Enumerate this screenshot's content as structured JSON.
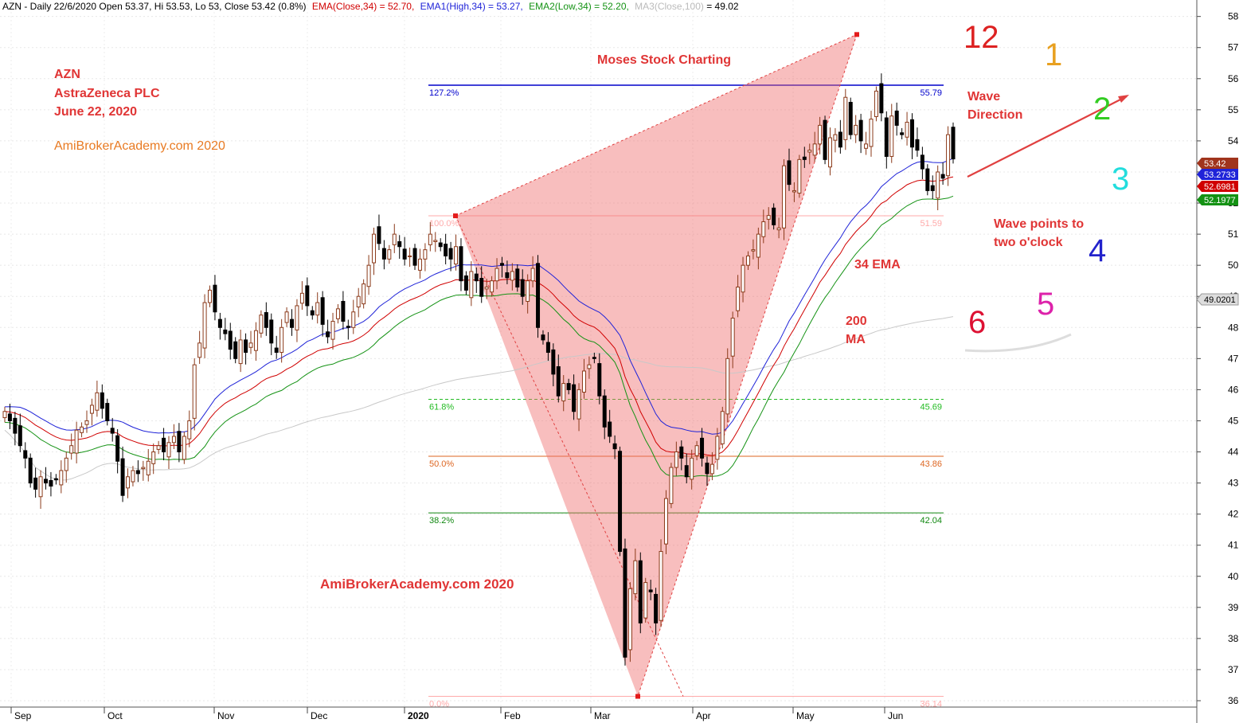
{
  "header": {
    "symbol_info": "AZN - Daily 22/6/2020 Open 53.37, Hi 53.53, Lo 53, Close 53.42 (0.8%)",
    "ema_close_label": "EMA(Close,34) = 52.70,",
    "ema1_high_label": "EMA1(High,34) = 53.27,",
    "ema2_low_label": "EMA2(Low,34) = 52.20,",
    "ma3_label": "MA3(Close,100)",
    "ma3_value": " = 49.02"
  },
  "annotations": {
    "ticker": "AZN",
    "company": "AstraZeneca PLC",
    "date": "June 22, 2020",
    "watermark_top": "AmiBrokerAcademy.com 2020",
    "watermark_bottom": "AmiBrokerAcademy.com 2020",
    "moses": "Moses Stock Charting",
    "wave_direction_1": "Wave",
    "wave_direction_2": "Direction",
    "wave_points_1": "Wave points to",
    "wave_points_2": "two o'clock",
    "ema34": "34 EMA",
    "ma200_1": "200",
    "ma200_2": "MA"
  },
  "clock_numbers": [
    {
      "text": "12",
      "color": "#dd2222"
    },
    {
      "text": "1",
      "color": "#e8a020"
    },
    {
      "text": "2",
      "color": "#33cc22"
    },
    {
      "text": "3",
      "color": "#22dddd"
    },
    {
      "text": "4",
      "color": "#2222cc"
    },
    {
      "text": "5",
      "color": "#dd22aa"
    },
    {
      "text": "6",
      "color": "#dd1133"
    }
  ],
  "fib_levels": [
    {
      "pct": "127.2%",
      "value": "55.79",
      "price": 55.79,
      "color": "#0000cc",
      "dash": false
    },
    {
      "pct": "100.0%",
      "value": "51.59",
      "price": 51.59,
      "color": "#ffaaaa",
      "dash": false
    },
    {
      "pct": "61.8%",
      "value": "45.69",
      "price": 45.69,
      "color": "#22bb22",
      "dash": true
    },
    {
      "pct": "50.0%",
      "value": "43.86",
      "price": 43.86,
      "color": "#dd6622",
      "dash": false
    },
    {
      "pct": "38.2%",
      "value": "42.04",
      "price": 42.04,
      "color": "#118811",
      "dash": false
    },
    {
      "pct": "0.0%",
      "value": "36.14",
      "price": 36.14,
      "color": "#ffaaaa",
      "dash": false
    }
  ],
  "price_tags": [
    {
      "text": "53.42",
      "price": 53.42,
      "color": "#a0341c"
    },
    {
      "text": "53.2733",
      "price": 53.27,
      "color": "#1f23d8"
    },
    {
      "text": "52.6981",
      "price": 52.7,
      "color": "#d00000"
    },
    {
      "text": "52.1977",
      "price": 52.2,
      "color": "#149214"
    },
    {
      "text": "49.0201",
      "price": 49.02,
      "color": "#dddddd"
    }
  ],
  "chart_data": {
    "type": "candlestick",
    "symbol": "AZN",
    "y_ticks": [
      36,
      37,
      38,
      39,
      40,
      41,
      42,
      43,
      44,
      45,
      46,
      47,
      48,
      49,
      50,
      51,
      52,
      53,
      54,
      55,
      56,
      57,
      58
    ],
    "ylim": [
      35.8,
      58.5
    ],
    "x_labels": [
      "Sep",
      "Oct",
      "Nov",
      "Dec",
      "2020",
      "Feb",
      "Mar",
      "Apr",
      "May",
      "Jun"
    ],
    "closes": [
      45.3,
      45.0,
      44.6,
      44.2,
      43.8,
      43.0,
      42.8,
      43.2,
      43.0,
      42.9,
      43.1,
      43.4,
      43.8,
      44.2,
      44.7,
      44.8,
      45.0,
      45.5,
      45.9,
      45.4,
      45.0,
      44.6,
      43.7,
      42.6,
      43.2,
      43.4,
      43.3,
      43.5,
      43.7,
      44.0,
      44.2,
      44.0,
      44.3,
      44.5,
      44.0,
      44.5,
      45.0,
      46.8,
      47.5,
      48.8,
      49.2,
      48.5,
      48.0,
      47.8,
      47.3,
      47.0,
      47.6,
      47.2,
      47.5,
      47.9,
      48.4,
      48.0,
      47.5,
      47.2,
      48.0,
      48.5,
      48.0,
      48.7,
      49.1,
      48.7,
      48.4,
      48.8,
      48.1,
      47.7,
      48.2,
      48.6,
      48.2,
      48.0,
      48.5,
      49.0,
      49.4,
      50.0,
      51.0,
      50.7,
      50.2,
      50.5,
      51.0,
      50.6,
      50.2,
      50.3,
      50.0,
      50.2,
      50.5,
      51.0,
      50.8,
      50.6,
      50.3,
      50.2,
      50.6,
      49.5,
      49.2,
      49.8,
      49.5,
      49.0,
      49.3,
      49.5,
      49.9,
      50.0,
      49.6,
      49.8,
      49.3,
      49.0,
      49.5,
      49.9,
      48.0,
      47.6,
      47.2,
      46.5,
      45.8,
      46.2,
      46.0,
      45.3,
      46.0,
      46.6,
      46.8,
      47.0,
      45.8,
      44.8,
      44.5,
      44.1,
      40.8,
      37.4,
      39.6,
      40.5,
      38.5,
      39.8,
      39.5,
      38.5,
      40.8,
      42.5,
      43.5,
      44.0,
      43.8,
      43.2,
      43.8,
      44.2,
      43.8,
      43.3,
      43.6,
      44.5,
      45.3,
      47.0,
      48.3,
      49.3,
      50.0,
      50.3,
      50.5,
      51.0,
      51.4,
      51.6,
      51.3,
      51.2,
      53.2,
      52.6,
      52.4,
      53.4,
      53.4,
      53.7,
      53.9,
      54.5,
      53.4,
      54.1,
      54.2,
      53.8,
      55.4,
      54.2,
      54.5,
      54.0,
      53.9,
      54.7,
      55.6,
      54.9,
      53.5,
      54.8,
      54.5,
      54.2,
      54.6,
      53.8,
      53.7,
      53.1,
      52.4,
      52.4,
      53.0,
      52.8,
      54.2,
      53.42
    ],
    "ema_close_34": 52.7,
    "ema_high_34": 53.27,
    "ema_low_34": 52.2,
    "ma_close_100": 49.02,
    "pattern_points": [
      51.59,
      57.42,
      36.14,
      36.14
    ],
    "annotation_arrow": "two o'clock"
  }
}
